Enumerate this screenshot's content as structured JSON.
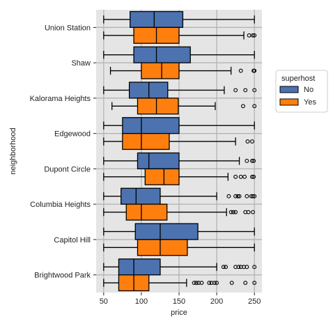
{
  "chart_data": {
    "type": "boxplot",
    "orientation": "horizontal",
    "xlabel": "price",
    "ylabel": "neighborhood",
    "xlim": [
      40,
      260
    ],
    "xticks": [
      50,
      100,
      150,
      200,
      250
    ],
    "grid": true,
    "legend": {
      "title": "superhost",
      "position": "right",
      "entries": [
        "No",
        "Yes"
      ]
    },
    "series_colors": {
      "No": "#4c72b0",
      "Yes": "#ff7f0e"
    },
    "categories": [
      "Union Station",
      "Shaw",
      "Kalorama Heights",
      "Edgewood",
      "Dupont Circle",
      "Columbia Heights",
      "Capitol Hill",
      "Brightwood Park"
    ],
    "series": [
      {
        "name": "No",
        "boxes": [
          {
            "whislo": 50,
            "q1": 85,
            "med": 117,
            "q3": 155,
            "whishi": 250,
            "fliers": []
          },
          {
            "whislo": 50,
            "q1": 90,
            "med": 120,
            "q3": 165,
            "whishi": 250,
            "fliers": []
          },
          {
            "whislo": 50,
            "q1": 84,
            "med": 110,
            "q3": 135,
            "whishi": 210,
            "fliers": [
              225,
              238,
              250
            ]
          },
          {
            "whislo": 50,
            "q1": 75,
            "med": 100,
            "q3": 150,
            "whishi": 250,
            "fliers": []
          },
          {
            "whislo": 50,
            "q1": 95,
            "med": 110,
            "q3": 150,
            "whishi": 230,
            "fliers": [
              240,
              247,
              249
            ]
          },
          {
            "whislo": 50,
            "q1": 73,
            "med": 93,
            "q3": 125,
            "whishi": 200,
            "fliers": [
              216,
              225,
              228,
              230,
              240,
              246,
              248,
              250
            ]
          },
          {
            "whislo": 50,
            "q1": 92,
            "med": 125,
            "q3": 175,
            "whishi": 250,
            "fliers": []
          },
          {
            "whislo": 50,
            "q1": 70,
            "med": 90,
            "q3": 125,
            "whishi": 200,
            "fliers": [
              209,
              212,
              225,
              229,
              232,
              236,
              240,
              250
            ]
          }
        ]
      },
      {
        "name": "Yes",
        "boxes": [
          {
            "whislo": 50,
            "q1": 90,
            "med": 120,
            "q3": 150,
            "whishi": 236,
            "fliers": [
              243,
              248,
              250
            ]
          },
          {
            "whislo": 59,
            "q1": 100,
            "med": 127,
            "q3": 150,
            "whishi": 219,
            "fliers": [
              232,
              249,
              250
            ]
          },
          {
            "whislo": 61,
            "q1": 95,
            "med": 120,
            "q3": 149,
            "whishi": 198,
            "fliers": [
              235,
              250
            ]
          },
          {
            "whislo": 50,
            "q1": 75,
            "med": 100,
            "q3": 137,
            "whishi": 225,
            "fliers": [
              241,
              247
            ]
          },
          {
            "whislo": 50,
            "q1": 105,
            "med": 130,
            "q3": 150,
            "whishi": 215,
            "fliers": [
              225,
              232,
              237,
              247,
              249
            ]
          },
          {
            "whislo": 50,
            "q1": 80,
            "med": 100,
            "q3": 134,
            "whishi": 213,
            "fliers": [
              219,
              222,
              225,
              238,
              242,
              248
            ]
          },
          {
            "whislo": 50,
            "q1": 95,
            "med": 125,
            "q3": 161,
            "whishi": 250,
            "fliers": []
          },
          {
            "whislo": 50,
            "q1": 70,
            "med": 90,
            "q3": 110,
            "whishi": 160,
            "fliers": [
              170,
              173,
              176,
              180,
              190,
              193,
              197,
              200,
              220,
              238,
              250
            ]
          }
        ]
      }
    ]
  }
}
